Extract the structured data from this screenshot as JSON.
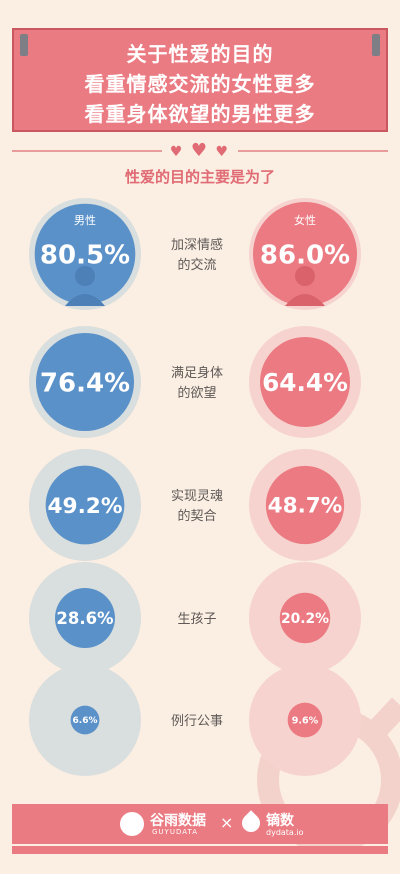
{
  "header": {
    "title_lines": [
      "关于性爱的目的",
      "看重情感交流的女性更多",
      "看重身体欲望的男性更多"
    ]
  },
  "subtitle": "性爱的目的主要是为了",
  "colors": {
    "male": "#5a91c8",
    "female": "#eb7a82",
    "male_ring": "#d9dede",
    "female_ring": "#f6d3cf",
    "label_text": "#5f5a58",
    "accent": "#e06b74",
    "background": "#fbeee2"
  },
  "footer": {
    "brand1": "谷雨数据",
    "brand1_sub": "GUYUDATA",
    "separator": "×",
    "brand2": "镝数",
    "brand2_sub": "dydata.io"
  },
  "chart_data": {
    "type": "bubble",
    "title": "性爱的目的主要是为了",
    "series": [
      {
        "name": "男性",
        "values": [
          80.5,
          76.4,
          49.2,
          28.6,
          6.6
        ]
      },
      {
        "name": "女性",
        "values": [
          86.0,
          64.4,
          48.7,
          20.2,
          9.6
        ]
      }
    ],
    "categories": [
      "加深情感的交流",
      "满足身体的欲望",
      "实现灵魂的契合",
      "生孩子",
      "例行公事"
    ],
    "category_lines": [
      [
        "加深情感",
        "的交流"
      ],
      [
        "满足身体",
        "的欲望"
      ],
      [
        "实现灵魂",
        "的契合"
      ],
      [
        "生孩子"
      ],
      [
        "例行公事"
      ]
    ],
    "value_labels": {
      "男性": [
        "80.5%",
        "76.4%",
        "49.2%",
        "28.6%",
        "6.6%"
      ],
      "女性": [
        "86.0%",
        "64.4%",
        "48.7%",
        "20.2%",
        "9.6%"
      ]
    },
    "unit": "%"
  }
}
